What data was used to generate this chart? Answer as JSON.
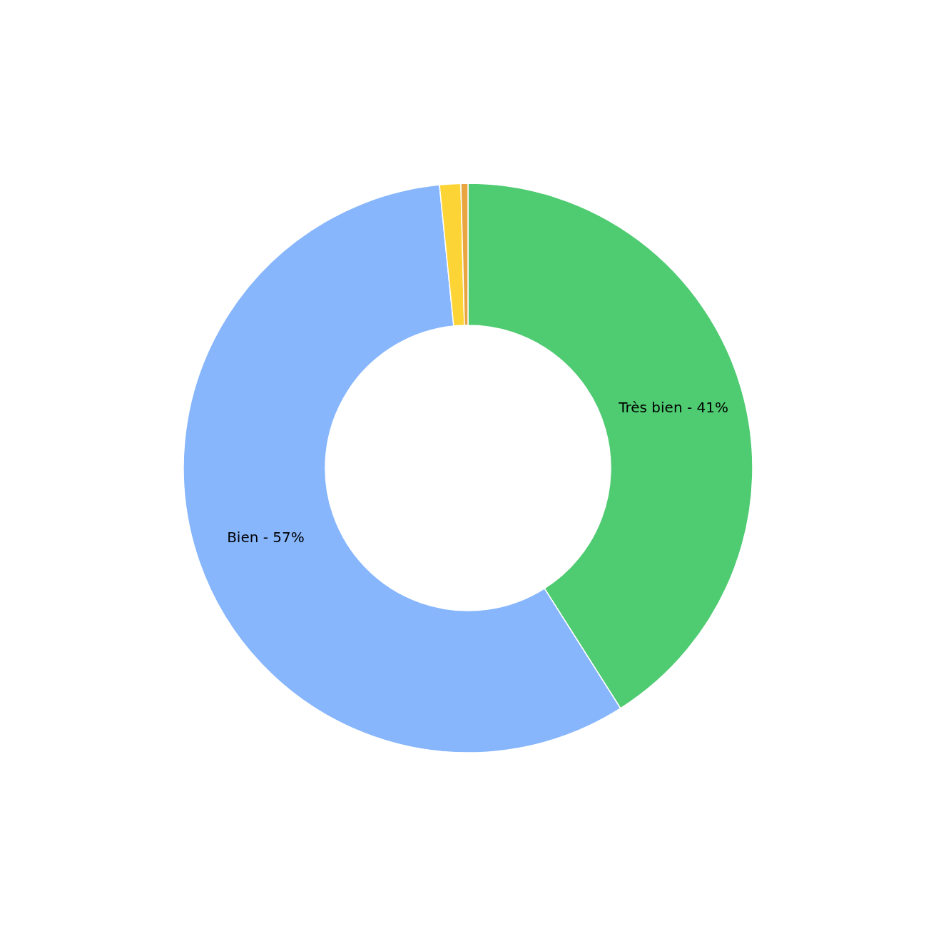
{
  "chart_data": {
    "type": "donut",
    "categories": [
      "Très bien",
      "Bien",
      null,
      null
    ],
    "values": [
      41,
      57.4,
      1.2,
      0.4
    ],
    "value_labels": [
      "41%",
      "57%",
      null,
      null
    ],
    "colors": [
      "#4fcb71",
      "#87b6fd",
      "#fdd435",
      "#e8a540"
    ]
  }
}
